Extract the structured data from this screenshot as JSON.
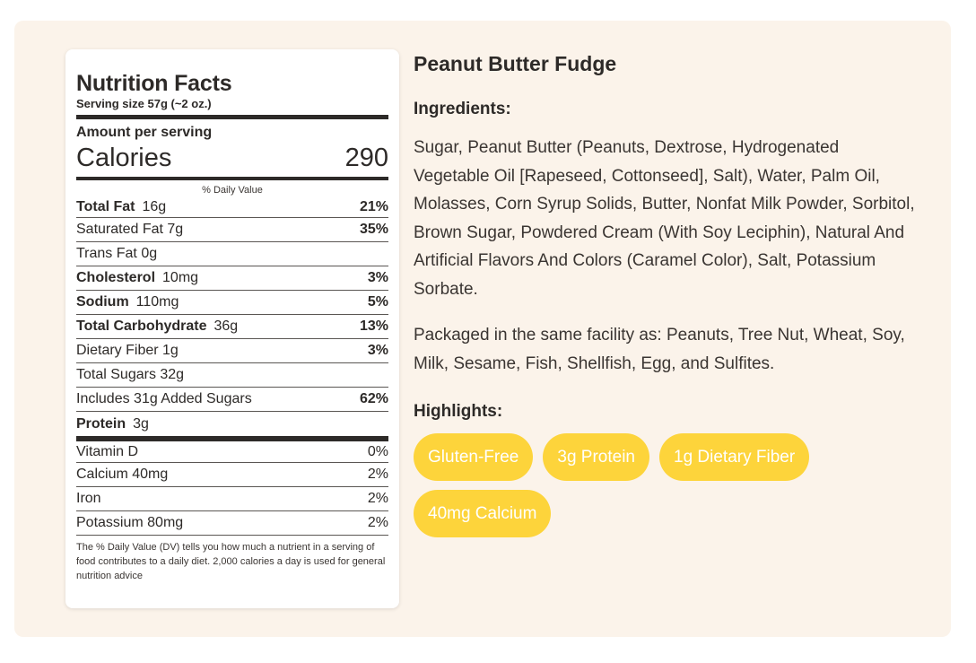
{
  "nutrition": {
    "title": "Nutrition Facts",
    "serving_size": "Serving size 57g (~2 oz.)",
    "amount_per_serving": "Amount per serving",
    "calories_label": "Calories",
    "calories_value": "290",
    "daily_value_header": "% Daily Value",
    "rows": [
      {
        "name": "Total Fat",
        "amount": "16g",
        "pct": "21%"
      },
      {
        "name": "Saturated Fat 7g",
        "amount": "",
        "pct": "35%"
      },
      {
        "name": "Trans Fat 0g",
        "amount": "",
        "pct": ""
      },
      {
        "name": "Cholesterol",
        "amount": "10mg",
        "pct": "3%"
      },
      {
        "name": "Sodium",
        "amount": "110mg",
        "pct": "5%"
      },
      {
        "name": "Total Carbohydrate",
        "amount": "36g",
        "pct": "13%"
      },
      {
        "name": "Dietary Fiber 1g",
        "amount": "",
        "pct": "3%"
      },
      {
        "name": "Total Sugars 32g",
        "amount": "",
        "pct": ""
      },
      {
        "name": "Includes 31g Added Sugars",
        "amount": "",
        "pct": "62%"
      },
      {
        "name": "Protein",
        "amount": "3g",
        "pct": ""
      }
    ],
    "vitamins": [
      {
        "name": "Vitamin D",
        "pct": "0%"
      },
      {
        "name": "Calcium 40mg",
        "pct": "2%"
      },
      {
        "name": "Iron",
        "pct": "2%"
      },
      {
        "name": "Potassium 80mg",
        "pct": "2%"
      }
    ],
    "footnote": "The % Daily Value (DV) tells you how much a nutrient in a serving of food contributes to a daily diet. 2,000 calories a day is used for general nutrition advice"
  },
  "product": {
    "title": "Peanut Butter Fudge",
    "ingredients_label": "Ingredients:",
    "ingredients_text": "Sugar, Peanut Butter (Peanuts, Dextrose, Hydrogenated Vegetable Oil [Rapeseed, Cottonseed], Salt), Water, Palm Oil, Molasses, Corn Syrup Solids, Butter, Nonfat Milk Powder, Sorbitol, Brown Sugar, Powdered Cream (With Soy Leciphin), Natural And Artificial Flavors And Colors (Caramel Color), Salt, Potassium Sorbate.",
    "facility_text": "Packaged in the same facility as: Peanuts, Tree Nut, Wheat, Soy, Milk, Sesame, Fish, Shellfish, Egg, and Sulfites.",
    "highlights_label": "Highlights:",
    "highlights": [
      "Gluten-Free",
      "3g Protein",
      "1g Dietary Fiber",
      "40mg Calcium"
    ]
  },
  "colors": {
    "panel_bg": "#fbf3ea",
    "chip_bg": "#fdd43b",
    "text_dark": "#2d2a28"
  }
}
